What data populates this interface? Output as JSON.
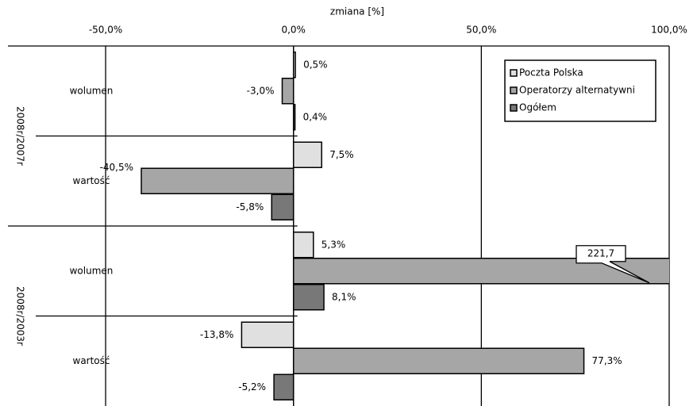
{
  "chart_data": {
    "type": "hbar-grouped",
    "x_label": "zmiana [%]",
    "groups": [
      "2008r/2007r",
      "2008r/2003r"
    ],
    "categories": [
      "wolumen",
      "wartość",
      "wolumen",
      "wartość"
    ],
    "series": [
      {
        "name": "Poczta Polska",
        "color": "#e0e0e0",
        "values": [
          0.5,
          7.5,
          5.3,
          -13.8
        ],
        "value_labels": [
          "0,5%",
          "7,5%",
          "5,3%",
          "-13,8%"
        ]
      },
      {
        "name": "Operatorzy alternatywni",
        "color": "#a6a6a6",
        "values": [
          -3.0,
          -40.5,
          221.7,
          77.3
        ],
        "value_labels": [
          "-3,0%",
          "-40,5%",
          "221,7",
          "77,3%"
        ]
      },
      {
        "name": "Ogółem",
        "color": "#787878",
        "values": [
          0.4,
          -5.8,
          8.1,
          -5.2
        ],
        "value_labels": [
          "0,4%",
          "-5,8%",
          "8,1%",
          "-5,2%"
        ]
      }
    ],
    "xlim": [
      -76,
      100
    ],
    "xticks": [
      {
        "value": -50,
        "label": "-50,0%"
      },
      {
        "value": 0,
        "label": "0,0%"
      },
      {
        "value": 50,
        "label": "50,0%"
      },
      {
        "value": 100,
        "label": "100,0%"
      }
    ],
    "grid": true,
    "legend": "top-right"
  }
}
